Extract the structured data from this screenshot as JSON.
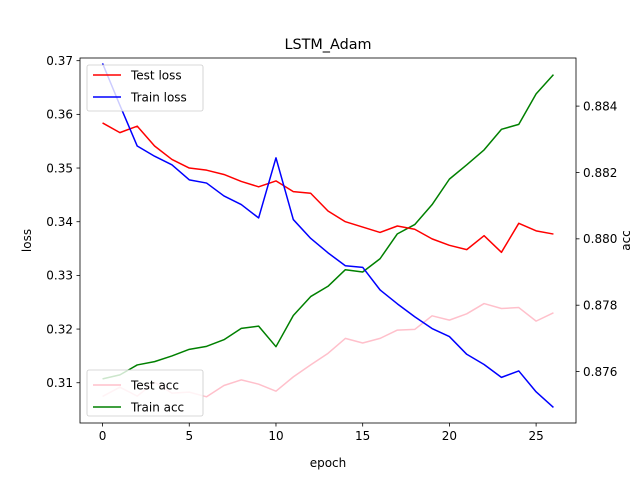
{
  "chart_data": {
    "type": "line",
    "title": "LSTM_Adam",
    "xlabel": "epoch",
    "ylabel_left": "loss",
    "ylabel_right": "acc",
    "xlim": [
      -1.3,
      27.3
    ],
    "ylim_left": [
      0.3025,
      0.3705
    ],
    "ylim_right": [
      0.87445,
      0.88545
    ],
    "x_ticks": [
      0,
      5,
      10,
      15,
      20,
      25
    ],
    "y_left_ticks": [
      0.31,
      0.32,
      0.33,
      0.34,
      0.35,
      0.36,
      0.37
    ],
    "y_right_ticks": [
      0.876,
      0.878,
      0.88,
      0.882,
      0.884
    ],
    "grid": false,
    "x": [
      0,
      1,
      2,
      3,
      4,
      5,
      6,
      7,
      8,
      9,
      10,
      11,
      12,
      13,
      14,
      15,
      16,
      17,
      18,
      19,
      20,
      21,
      22,
      23,
      24,
      25,
      26
    ],
    "series_left": [
      {
        "name": "Test loss",
        "color": "#ff0000",
        "values": [
          0.3584,
          0.3566,
          0.3578,
          0.3541,
          0.3516,
          0.35,
          0.3496,
          0.3488,
          0.3475,
          0.3465,
          0.3476,
          0.3456,
          0.3453,
          0.342,
          0.34,
          0.339,
          0.338,
          0.3392,
          0.3386,
          0.3368,
          0.3356,
          0.3348,
          0.3374,
          0.3343,
          0.3397,
          0.3383,
          0.3377
        ]
      },
      {
        "name": "Train loss",
        "color": "#0000ff",
        "values": [
          0.3695,
          0.3617,
          0.3541,
          0.3522,
          0.3506,
          0.3478,
          0.3472,
          0.3448,
          0.3432,
          0.3407,
          0.3519,
          0.3404,
          0.3369,
          0.3342,
          0.3318,
          0.3315,
          0.3273,
          0.3247,
          0.3223,
          0.3201,
          0.3186,
          0.3153,
          0.3134,
          0.311,
          0.3122,
          0.3083,
          0.3054
        ]
      }
    ],
    "series_right": [
      {
        "name": "Test acc",
        "color": "#ffc0cb",
        "values": [
          0.87525,
          0.87553,
          0.87526,
          0.87568,
          0.87535,
          0.87538,
          0.87524,
          0.87558,
          0.87575,
          0.87562,
          0.87541,
          0.87584,
          0.8762,
          0.87655,
          0.877,
          0.87686,
          0.877,
          0.87725,
          0.87727,
          0.87768,
          0.87755,
          0.87774,
          0.87805,
          0.8779,
          0.87793,
          0.87752,
          0.87777
        ]
      },
      {
        "name": "Train acc",
        "color": "#008000",
        "values": [
          0.87578,
          0.8759,
          0.8762,
          0.8763,
          0.87647,
          0.87667,
          0.87676,
          0.87696,
          0.8773,
          0.87737,
          0.87675,
          0.87769,
          0.87826,
          0.87857,
          0.87907,
          0.879,
          0.8794,
          0.88015,
          0.88043,
          0.88103,
          0.8818,
          0.88223,
          0.88268,
          0.8833,
          0.88345,
          0.88437,
          0.88495
        ]
      }
    ],
    "legend_upper": {
      "placement": "upper-left",
      "entries": [
        "Test loss",
        "Train loss"
      ]
    },
    "legend_lower": {
      "placement": "lower-left",
      "entries": [
        "Test acc",
        "Train acc"
      ]
    }
  }
}
